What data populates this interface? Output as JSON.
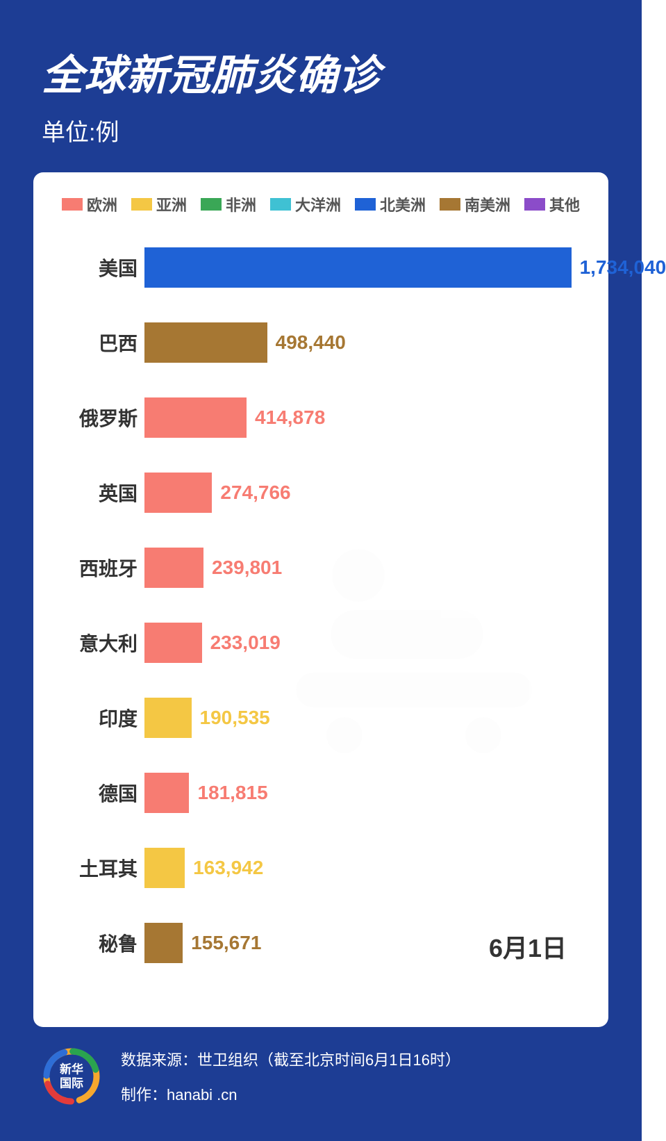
{
  "background_color": "#1d3d94",
  "header": {
    "title": "全球新冠肺炎确诊",
    "subtitle": "单位:例"
  },
  "chart": {
    "type": "bar",
    "card_bg": "#ffffff",
    "max_value": 1800000,
    "legend": [
      {
        "label": "欧洲",
        "color": "#f77c72"
      },
      {
        "label": "亚洲",
        "color": "#f4c744"
      },
      {
        "label": "非洲",
        "color": "#3aa756"
      },
      {
        "label": "大洋洲",
        "color": "#3fc1d3"
      },
      {
        "label": "北美洲",
        "color": "#1f62d6"
      },
      {
        "label": "南美洲",
        "color": "#a67733"
      },
      {
        "label": "其他",
        "color": "#8b4cc9"
      }
    ],
    "bars": [
      {
        "label": "美国",
        "value": 1734040,
        "display": "1,734,040",
        "color": "#1f62d6",
        "text_color": "#1f62d6"
      },
      {
        "label": "巴西",
        "value": 498440,
        "display": "498,440",
        "color": "#a67733",
        "text_color": "#a67733"
      },
      {
        "label": "俄罗斯",
        "value": 414878,
        "display": "414,878",
        "color": "#f77c72",
        "text_color": "#f77c72"
      },
      {
        "label": "英国",
        "value": 274766,
        "display": "274,766",
        "color": "#f77c72",
        "text_color": "#f77c72"
      },
      {
        "label": "西班牙",
        "value": 239801,
        "display": "239,801",
        "color": "#f77c72",
        "text_color": "#f77c72"
      },
      {
        "label": "意大利",
        "value": 233019,
        "display": "233,019",
        "color": "#f77c72",
        "text_color": "#f77c72"
      },
      {
        "label": "印度",
        "value": 190535,
        "display": "190,535",
        "color": "#f4c744",
        "text_color": "#f4c744"
      },
      {
        "label": "德国",
        "value": 181815,
        "display": "181,815",
        "color": "#f77c72",
        "text_color": "#f77c72"
      },
      {
        "label": "土耳其",
        "value": 163942,
        "display": "163,942",
        "color": "#f4c744",
        "text_color": "#f4c744"
      },
      {
        "label": "秘鲁",
        "value": 155671,
        "display": "155,671",
        "color": "#a67733",
        "text_color": "#a67733"
      }
    ],
    "date_label": "6月1日",
    "watermark_color": "#e8e8e8"
  },
  "footer": {
    "logo_text": "新华\n国际",
    "ring_colors": [
      "#f7a82e",
      "#e33b3b",
      "#2e6ed6",
      "#2aa44f"
    ],
    "source_line": "数据来源：世卫组织（截至北京时间6月1日16时）",
    "credit_line": "制作：hanabi .cn"
  }
}
